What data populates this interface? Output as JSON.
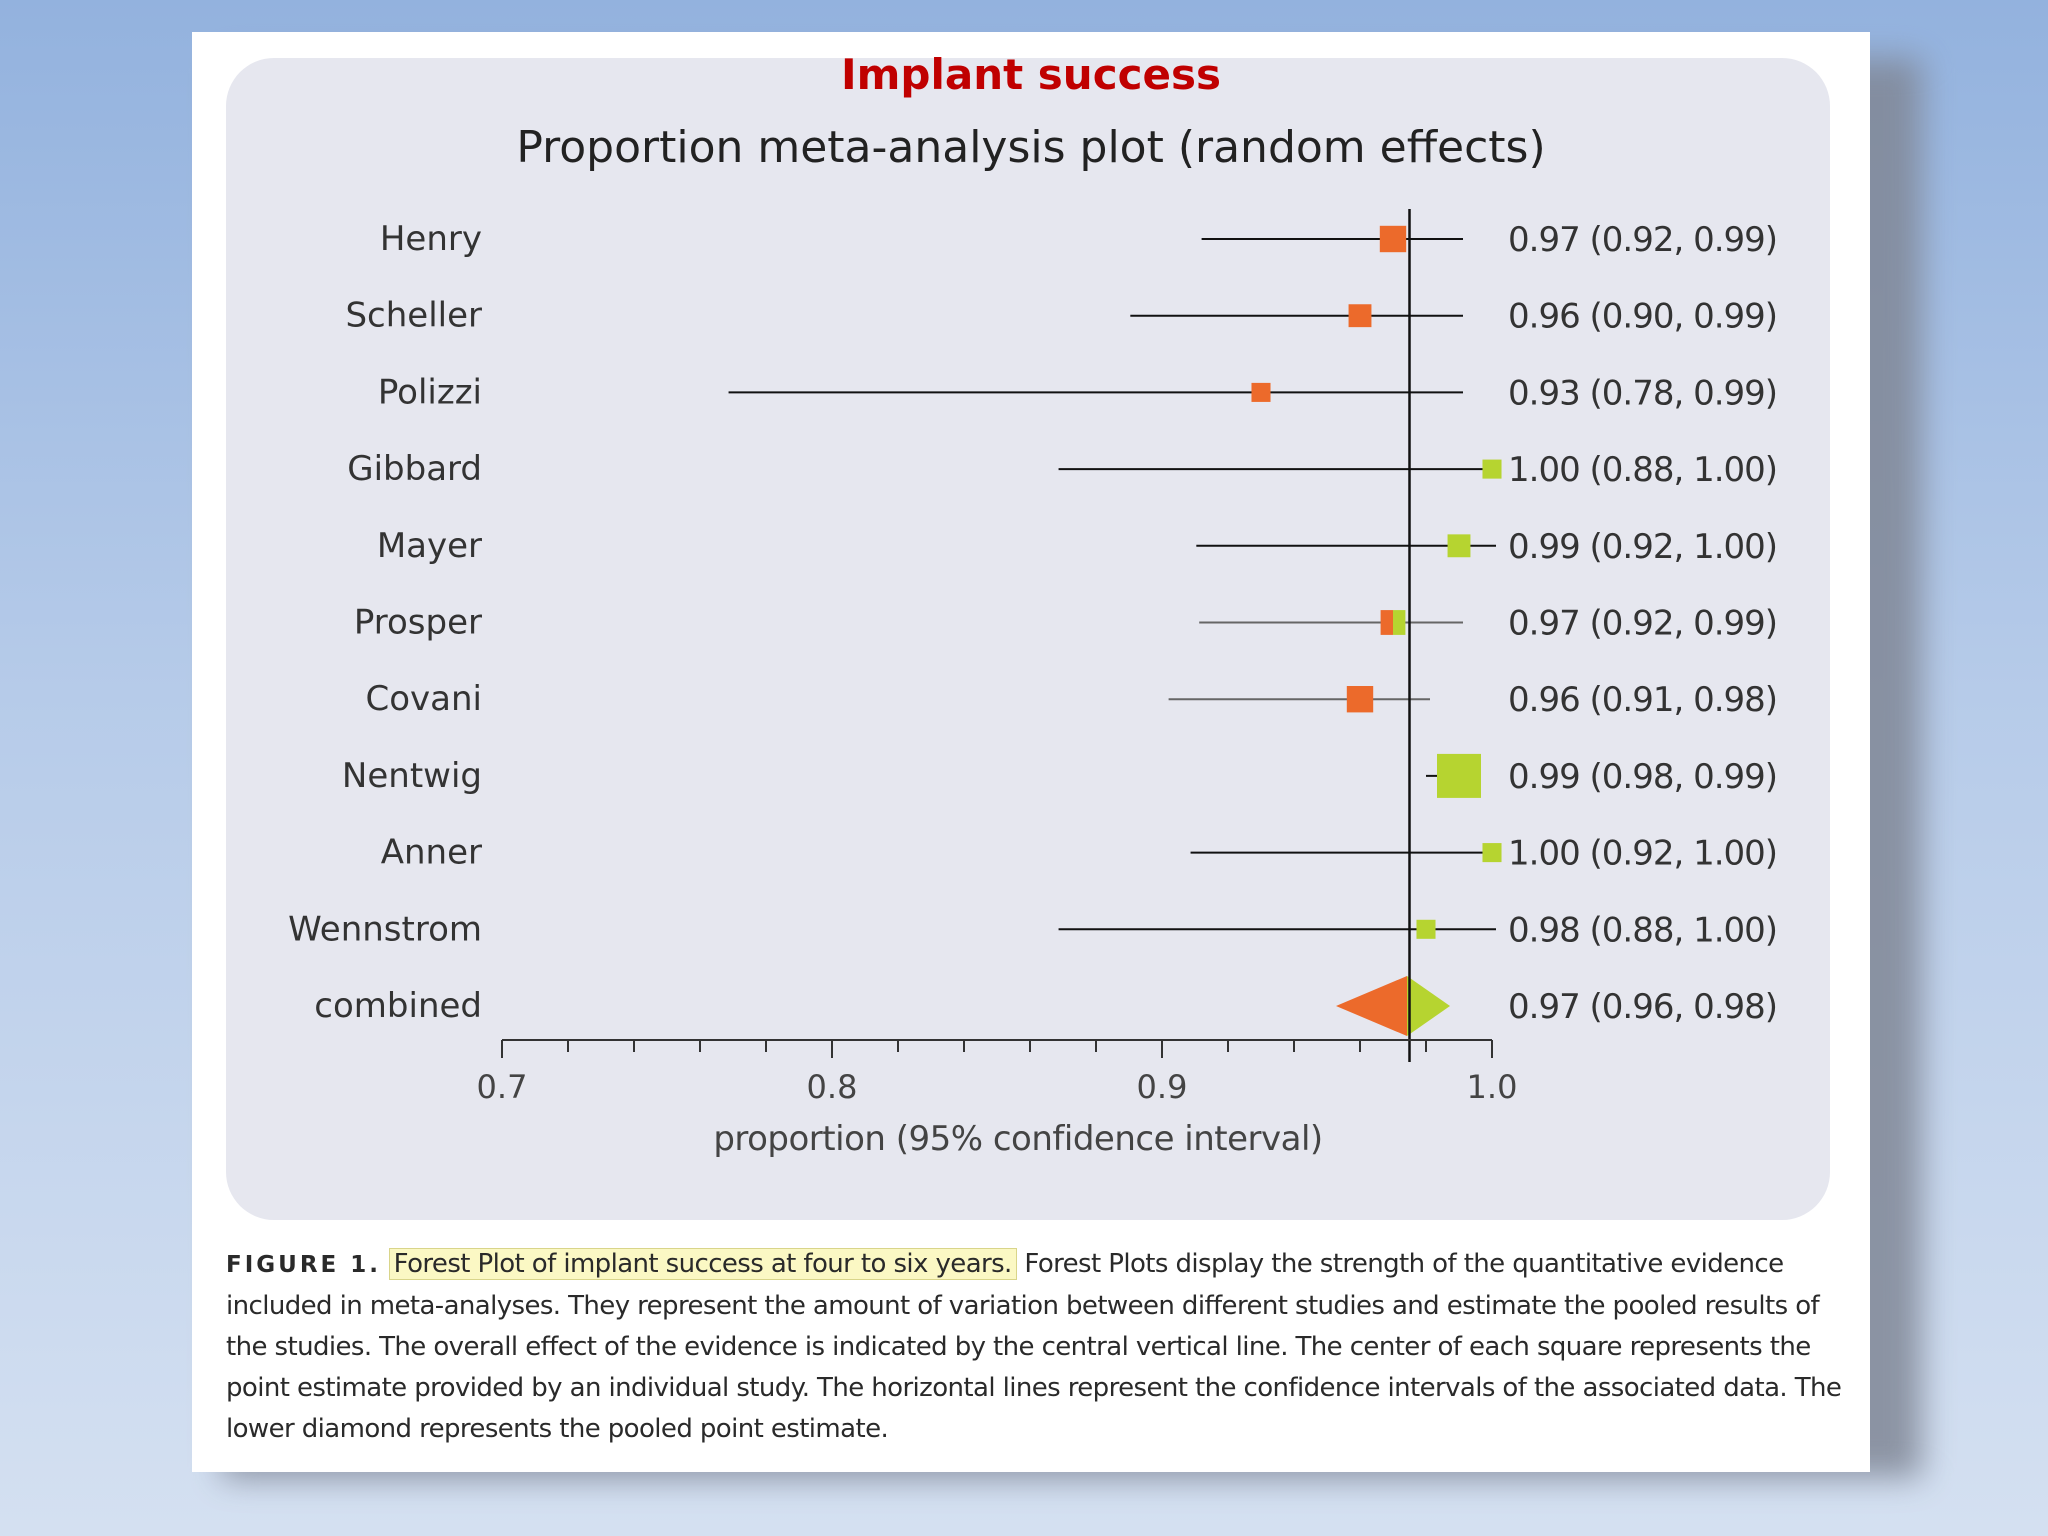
{
  "slide": {
    "title": "Implant success"
  },
  "chart_data": {
    "type": "forest",
    "title": "Proportion meta-analysis plot (random effects)",
    "xlabel": "proportion (95% confidence interval)",
    "xlim": [
      0.7,
      1.0
    ],
    "ticks": [
      0.7,
      0.8,
      0.9,
      1.0
    ],
    "tick_labels": [
      "0.7",
      "0.8",
      "0.9",
      "1.0"
    ],
    "minor_tick_step": 0.02,
    "reference_line": 0.975,
    "studies": [
      {
        "name": "Henry",
        "est": 0.97,
        "lo": 0.92,
        "hi": 0.99,
        "label": "0.97 (0.92, 0.99)",
        "color": "#ec6a2b",
        "weight": 0.45
      },
      {
        "name": "Scheller",
        "est": 0.96,
        "lo": 0.9,
        "hi": 0.99,
        "label": "0.96 (0.90, 0.99)",
        "color": "#ec6a2b",
        "weight": 0.34
      },
      {
        "name": "Polizzi",
        "est": 0.93,
        "lo": 0.78,
        "hi": 0.99,
        "label": "0.93 (0.78, 0.99)",
        "color": "#ec6a2b",
        "weight": 0.22
      },
      {
        "name": "Gibbard",
        "est": 1.0,
        "lo": 0.88,
        "hi": 1.0,
        "label": "1.00 (0.88, 1.00)",
        "color": "#b6d430",
        "weight": 0.22
      },
      {
        "name": "Mayer",
        "est": 0.99,
        "lo": 0.92,
        "hi": 1.0,
        "label": "0.99 (0.92, 1.00)",
        "color": "#b6d430",
        "weight": 0.34
      },
      {
        "name": "Prosper",
        "est": 0.97,
        "lo": 0.92,
        "hi": 0.99,
        "label": "0.97 (0.92, 0.99)",
        "color": "#ec6a2b",
        "color2": "#b6d430",
        "weight": 0.4
      },
      {
        "name": "Covani",
        "est": 0.96,
        "lo": 0.91,
        "hi": 0.98,
        "label": "0.96 (0.91, 0.98)",
        "color": "#ec6a2b",
        "weight": 0.45
      },
      {
        "name": "Nentwig",
        "est": 0.99,
        "lo": 0.98,
        "hi": 0.99,
        "label": "0.99 (0.98, 0.99)",
        "color": "#b6d430",
        "weight": 1.0
      },
      {
        "name": "Anner",
        "est": 1.0,
        "lo": 0.92,
        "hi": 1.0,
        "label": "1.00 (0.92, 1.00)",
        "color": "#b6d430",
        "weight": 0.22
      },
      {
        "name": "Wennstrom",
        "est": 0.98,
        "lo": 0.88,
        "hi": 1.0,
        "label": "0.98 (0.88, 1.00)",
        "color": "#b6d430",
        "weight": 0.22
      }
    ],
    "combined": {
      "name": "combined",
      "est": 0.97,
      "lo": 0.96,
      "hi": 0.98,
      "label": "0.97 (0.96, 0.98)",
      "color_left": "#ec6a2b",
      "color_right": "#b6d430"
    }
  },
  "caption": {
    "figure_label": "FIGURE 1.",
    "highlight": "Forest Plot of implant success at four to six years.",
    "text": "Forest Plots display the strength of the quantitative evidence included in meta-analyses. They represent the amount of variation between different studies and estimate the pooled results of the studies. The overall effect of the evidence is indicated by the central vertical line. The center of each square represents the point estimate provided by an individual study. The horizontal lines represent the confidence intervals of the associated data. The lower diamond represents the pooled point estimate."
  }
}
